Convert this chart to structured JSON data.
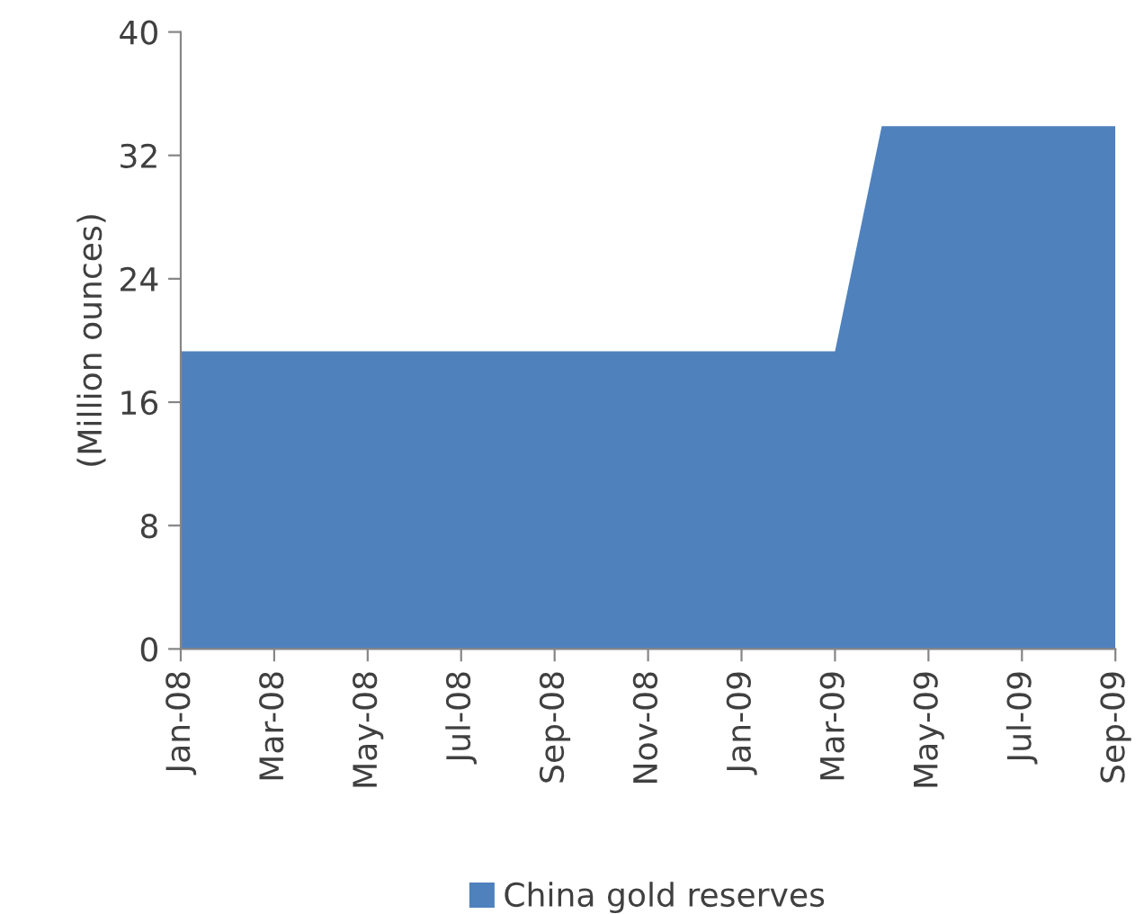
{
  "chart_data": {
    "type": "area",
    "ylabel": "(Million ounces)",
    "categories": [
      "Jan-08",
      null,
      "Mar-08",
      null,
      "May-08",
      null,
      "Jul-08",
      null,
      "Sep-08",
      null,
      "Nov-08",
      null,
      "Jan-09",
      null,
      "Mar-09",
      null,
      "May-09",
      null,
      "Jul-09",
      null,
      "Sep-09"
    ],
    "series": [
      {
        "name": "China gold reserves",
        "color": "#4f81bd",
        "values": [
          19.3,
          19.3,
          19.3,
          19.3,
          19.3,
          19.3,
          19.3,
          19.3,
          19.3,
          19.3,
          19.3,
          19.3,
          19.3,
          19.3,
          19.3,
          33.9,
          33.9,
          33.9,
          33.9,
          33.9,
          33.9
        ]
      }
    ],
    "ylim": [
      0,
      40
    ],
    "yticks": [
      0,
      8,
      16,
      24,
      32,
      40
    ],
    "grid": false,
    "legend": "bottom"
  }
}
